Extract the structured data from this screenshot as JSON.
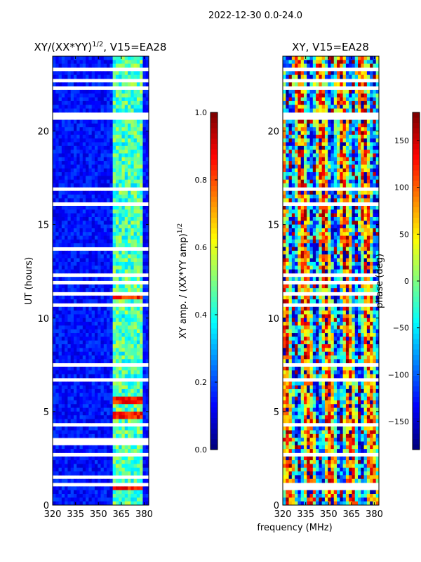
{
  "suptitle": "2022-12-30 0.0-24.0",
  "chart_data": [
    {
      "type": "heatmap",
      "title_main": "XY/(XX*YY)",
      "title_sup": "1/2",
      "title_rest": ", V15=EA28",
      "xlabel": "",
      "ylabel": "UT (hours)",
      "xlim": [
        320,
        383
      ],
      "ylim": [
        0,
        24
      ],
      "xticks": [
        320,
        335,
        350,
        365,
        380
      ],
      "yticks": [
        0,
        5,
        10,
        15,
        20
      ],
      "colormap": "jet",
      "colorbar": {
        "label_main": "XY amp. / (XX*YY amp)",
        "label_sup": "1/2",
        "range": [
          0.0,
          1.0
        ],
        "ticks": [
          "0.0",
          "0.2",
          "0.4",
          "0.6",
          "0.8",
          "1.0"
        ]
      },
      "background_level": 0.08,
      "bright_channel_band_mhz": [
        360,
        380
      ],
      "band_level": 0.45,
      "hot_rows_ut": [
        0.9,
        4.8,
        5.6,
        11.1
      ],
      "hot_level": 0.85,
      "flagged_rows_ut": [
        1.1,
        1.5,
        2.7,
        3.3,
        3.6,
        4.3,
        6.8,
        7.5,
        10.7,
        11.4,
        11.9,
        12.3,
        13.8,
        16.2,
        17.0,
        20.8,
        21.0,
        22.3,
        22.7,
        23.3
      ]
    },
    {
      "type": "heatmap",
      "title_main": "XY, V15=EA28",
      "xlabel": "frequency (MHz)",
      "ylabel": "",
      "xlim": [
        320,
        383
      ],
      "ylim": [
        0,
        24
      ],
      "xticks": [
        320,
        335,
        350,
        365,
        380
      ],
      "yticks": [
        0,
        5,
        10,
        15,
        20
      ],
      "colormap": "jet",
      "colorbar": {
        "label": "phase (deg)",
        "range": [
          -180,
          180
        ],
        "ticks": [
          "−150",
          "−100",
          "−50",
          "0",
          "50",
          "100",
          "150"
        ],
        "tick_values": [
          -150,
          -100,
          -50,
          0,
          50,
          100,
          150
        ]
      },
      "phase_pattern": "banded vertical stripes in frequency, noisy in time",
      "flagged_rows_ut": [
        0.9,
        1.1,
        2.7,
        4.3,
        6.8,
        7.5,
        10.7,
        11.4,
        11.9,
        12.3,
        16.2,
        17.0,
        20.8,
        21.0,
        22.3,
        22.7,
        23.3
      ]
    }
  ]
}
